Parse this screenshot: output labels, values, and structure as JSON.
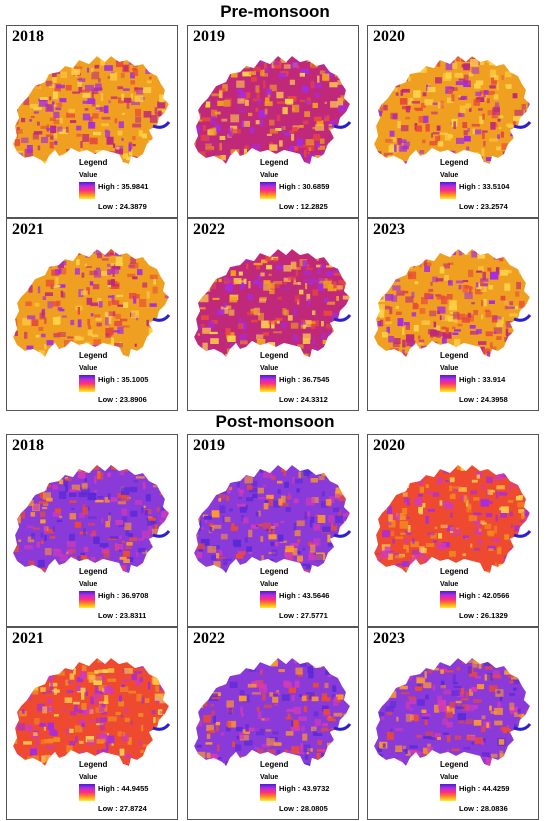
{
  "colors": {
    "pre_base": "#f0a020",
    "pre_mid": "#e84a3a",
    "pre_high": "#c0287a",
    "post_base": "#8a3ad8",
    "post_mid": "#d23ab8",
    "post_high": "#ee4a30",
    "ramp": [
      "#3a22e0",
      "#c02ad8",
      "#ff2f7a",
      "#ff8f20",
      "#ffef20"
    ]
  },
  "sections": [
    {
      "title": "Pre-monsoon",
      "panels": [
        {
          "year": "2018",
          "legend": "Legend",
          "value": "Value",
          "high": "High : 35.9841",
          "low": "Low : 24.3879",
          "palette": "pre1"
        },
        {
          "year": "2019",
          "legend": "Legend",
          "value": "Value",
          "high": "High : 30.6859",
          "low": "Low : 12.2825",
          "palette": "pre2"
        },
        {
          "year": "2020",
          "legend": "Legend",
          "value": "Value",
          "high": "High : 33.5104",
          "low": "Low : 23.2574",
          "palette": "pre1"
        },
        {
          "year": "2021",
          "legend": "Legend",
          "value": "Value",
          "high": "High : 35.1005",
          "low": "Low : 23.8906",
          "palette": "pre1"
        },
        {
          "year": "2022",
          "legend": "Legend",
          "value": "Value",
          "high": "High : 36.7545",
          "low": "Low : 24.3312",
          "palette": "pre2"
        },
        {
          "year": "2023",
          "legend": "Legend",
          "value": "Value",
          "high": "High : 33.914",
          "low": "Low : 24.3958",
          "palette": "pre1"
        }
      ]
    },
    {
      "title": "Post-monsoon",
      "panels": [
        {
          "year": "2018",
          "legend": "Legend",
          "value": "Value",
          "high": "High : 36.9708",
          "low": "Low : 23.8311",
          "palette": "post1"
        },
        {
          "year": "2019",
          "legend": "Legend",
          "value": "Value",
          "high": "High : 43.5646",
          "low": "Low : 27.5771",
          "palette": "post1"
        },
        {
          "year": "2020",
          "legend": "Legend",
          "value": "Value",
          "high": "High : 42.0566",
          "low": "Low : 26.1329",
          "palette": "post2"
        },
        {
          "year": "2021",
          "legend": "Legend",
          "value": "Value",
          "high": "High : 44.9455",
          "low": "Low : 27.8724",
          "palette": "post2"
        },
        {
          "year": "2022",
          "legend": "Legend",
          "value": "Value",
          "high": "High : 43.9732",
          "low": "Low : 28.0805",
          "palette": "post1"
        },
        {
          "year": "2023",
          "legend": "Legend",
          "value": "Value",
          "high": "High : 44.4259",
          "low": "Low : 28.0836",
          "palette": "post1"
        }
      ]
    }
  ]
}
